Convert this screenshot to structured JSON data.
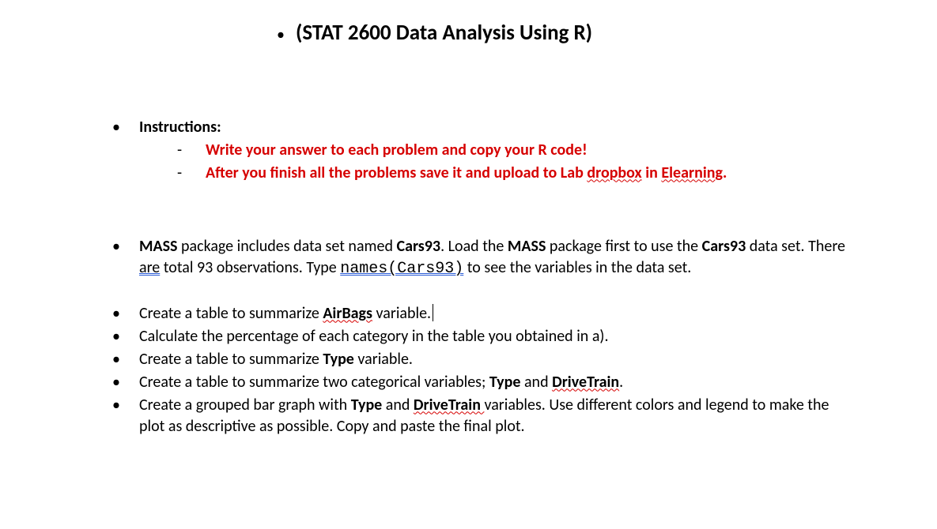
{
  "colors": {
    "text": "#000000",
    "accent_red": "#d60000",
    "underline_blue": "#2b5cd6",
    "background": "#ffffff"
  },
  "typography": {
    "body_family": "Calibri",
    "body_size_pt": 15,
    "title_size_pt": 20,
    "code_family": "Courier New"
  },
  "title": "(STAT 2600 Data Analysis Using R)",
  "instructions": {
    "heading": "Instructions:",
    "lines": [
      {
        "parts": [
          {
            "text": "Write your answer to each problem and copy your R code!",
            "bold": true,
            "red": true
          }
        ]
      },
      {
        "parts": [
          {
            "text": "After you finish all the problems save it and upload to Lab ",
            "bold": true,
            "red": true
          },
          {
            "text": "dropbox",
            "bold": true,
            "red": true,
            "wavy": true
          },
          {
            "text": " in ",
            "bold": true,
            "red": true
          },
          {
            "text": "Elearning",
            "bold": true,
            "red": true,
            "wavy": true
          },
          {
            "text": ".",
            "bold": true,
            "red": true
          }
        ]
      }
    ]
  },
  "items": [
    {
      "parts": [
        {
          "text": "MASS",
          "bold": true
        },
        {
          "text": " package includes data set named "
        },
        {
          "text": "Cars93",
          "bold": true
        },
        {
          "text": ". Load the "
        },
        {
          "text": "MASS",
          "bold": true
        },
        {
          "text": " package first to use the "
        },
        {
          "text": "Cars93",
          "bold": true
        },
        {
          "text": " data set. There "
        },
        {
          "text": "are",
          "ublue": true
        },
        {
          "text": " total 93 observations. Type "
        },
        {
          "text": "names(Cars93)",
          "code": true,
          "ublue": true
        },
        {
          "text": " to see the variables in the data set."
        }
      ],
      "gap_after": true
    },
    {
      "parts": [
        {
          "text": "Create a table to summarize "
        },
        {
          "text": "AirBags",
          "bold": true,
          "wavy": true
        },
        {
          "text": " variable."
        },
        {
          "cursor": true
        }
      ]
    },
    {
      "parts": [
        {
          "text": "Calculate the percentage of each category in the table you obtained in a)."
        }
      ]
    },
    {
      "parts": [
        {
          "text": "Create a table to summarize "
        },
        {
          "text": "Type",
          "bold": true
        },
        {
          "text": " variable."
        }
      ]
    },
    {
      "parts": [
        {
          "text": "Create a table to summarize two categorical variables; "
        },
        {
          "text": "Type",
          "bold": true
        },
        {
          "text": " and "
        },
        {
          "text": "DriveTrain",
          "bold": true,
          "wavy": true
        },
        {
          "text": "."
        }
      ]
    },
    {
      "parts": [
        {
          "text": "Create a grouped bar graph with "
        },
        {
          "text": "Type",
          "bold": true
        },
        {
          "text": " and "
        },
        {
          "text": "DriveTrain ",
          "bold": true,
          "wavy": true
        },
        {
          "text": "variables. Use different colors and legend to make the plot as descriptive as possible. Copy and paste the final plot."
        }
      ]
    }
  ]
}
